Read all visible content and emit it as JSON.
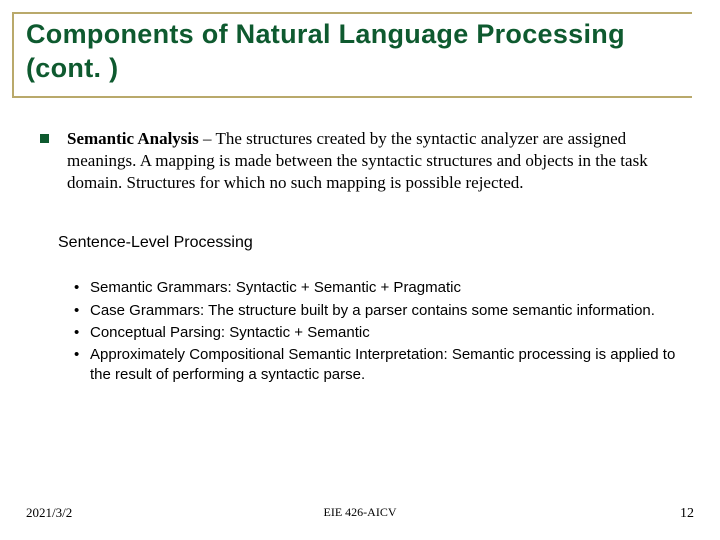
{
  "colors": {
    "title_color": "#0e5a2f",
    "rule_color": "#b9a96b",
    "bullet_color": "#0e5a2f",
    "text_color": "#000000",
    "background": "#ffffff"
  },
  "title": "Components of Natural Language Processing (cont. )",
  "main_bullet": {
    "bold_lead": "Semantic Analysis",
    "rest": " – The structures created by the syntactic analyzer are assigned meanings. A mapping is made between the syntactic structures and objects in the task domain. Structures for which no such mapping is possible rejected."
  },
  "subheading": "Sentence-Level Processing",
  "items": [
    "Semantic Grammars: Syntactic + Semantic + Pragmatic",
    "Case Grammars: The structure built by a parser contains some semantic information.",
    "Conceptual Parsing: Syntactic + Semantic",
    "Approximately Compositional Semantic Interpretation: Semantic processing is applied to the result of performing a syntactic parse."
  ],
  "footer": {
    "date": "2021/3/2",
    "center": "EIE 426-AICV",
    "page": "12"
  }
}
